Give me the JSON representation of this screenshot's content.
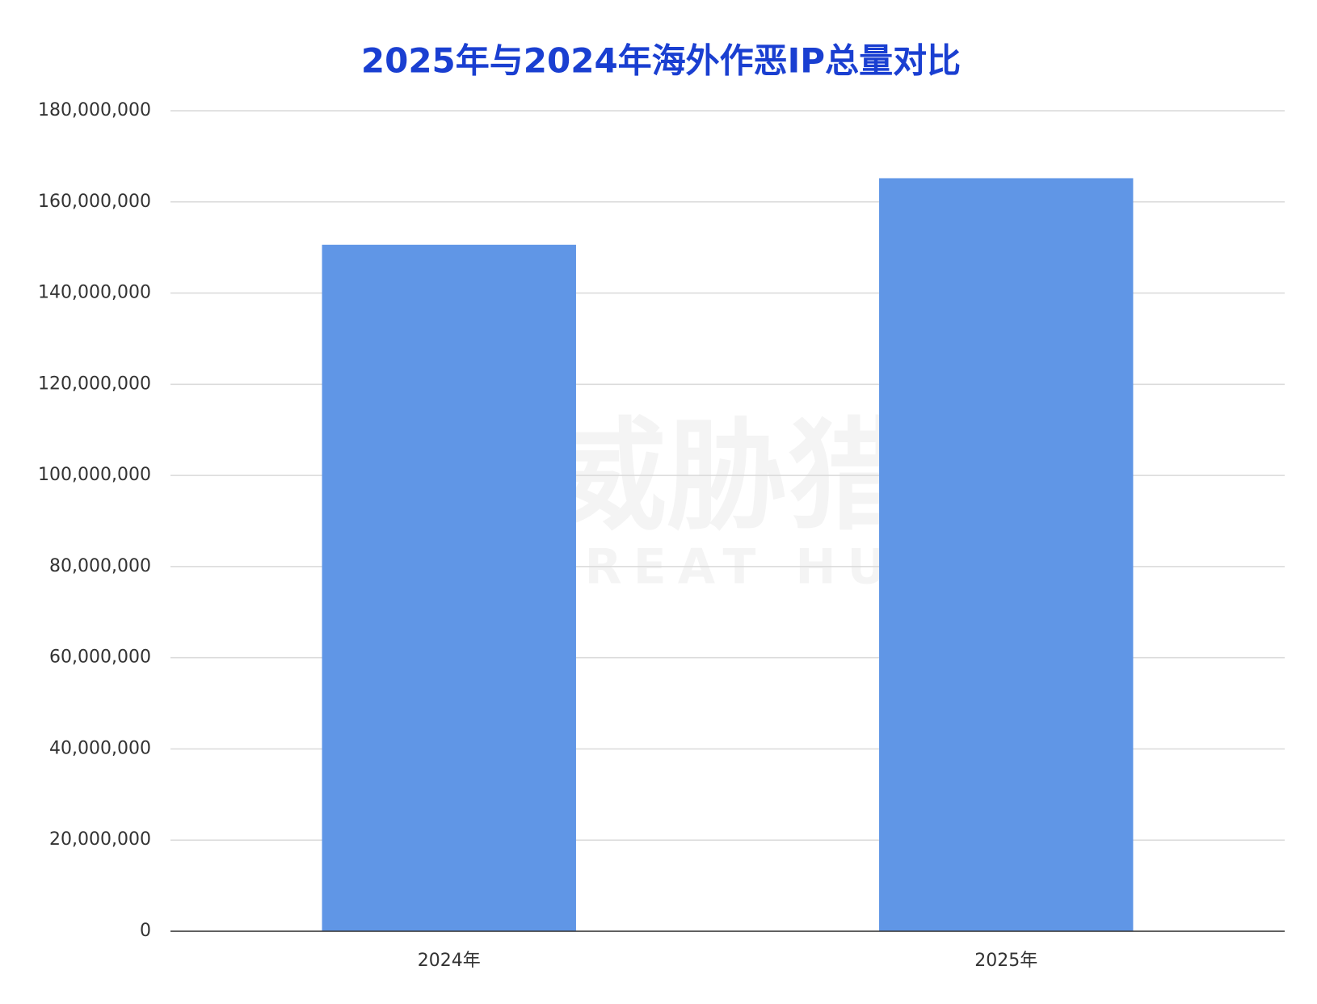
{
  "chart_data": {
    "type": "bar",
    "title": "2025年与2024年海外作恶IP总量对比",
    "watermark": [
      "威胁猎人",
      "THREAT HUNTER"
    ],
    "categories": [
      "2024年",
      "2025年"
    ],
    "values": [
      150600000,
      165200000
    ],
    "color": "#6096e6",
    "ylim": [
      0,
      180000000
    ],
    "yticks": [
      0,
      {
        "value": 20000000,
        "label": "20,000,000"
      },
      {
        "value": 40000000,
        "label": "40,000,000"
      },
      {
        "value": 60000000,
        "label": "60,000,000"
      },
      {
        "value": 80000000,
        "label": "80,000,000"
      },
      {
        "value": 100000000,
        "label": "100,000,000"
      },
      {
        "value": 120000000,
        "label": "120,000,000"
      },
      {
        "value": 140000000,
        "label": "140,000,000"
      },
      {
        "value": 160000000,
        "label": "160,000,000"
      },
      {
        "value": 180000000,
        "label": "180,000,000"
      }
    ],
    "grid": true
  }
}
